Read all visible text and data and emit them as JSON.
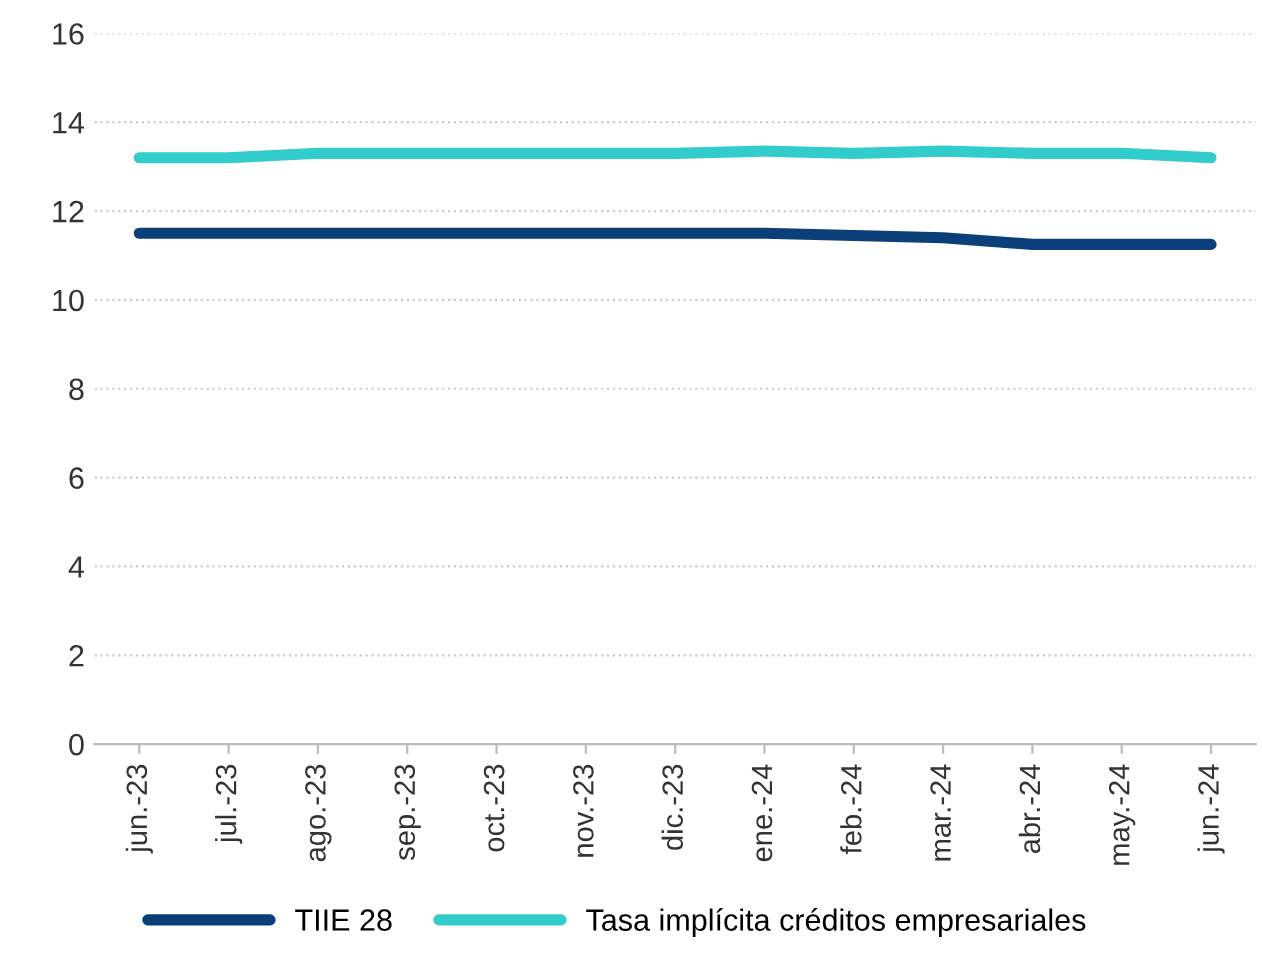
{
  "chart_data": {
    "type": "line",
    "categories": [
      "jun.-23",
      "jul.-23",
      "ago.-23",
      "sep.-23",
      "oct.-23",
      "nov.-23",
      "dic.-23",
      "ene.-24",
      "feb.-24",
      "mar.-24",
      "abr.-24",
      "may.-24",
      "jun.-24"
    ],
    "series": [
      {
        "name": "TIIE 28",
        "color": "#0b3f7a",
        "values": [
          11.5,
          11.5,
          11.5,
          11.5,
          11.5,
          11.5,
          11.5,
          11.5,
          11.45,
          11.4,
          11.25,
          11.25,
          11.25
        ]
      },
      {
        "name": "Tasa implícita créditos empresariales",
        "color": "#33cccc",
        "values": [
          13.2,
          13.2,
          13.3,
          13.3,
          13.3,
          13.3,
          13.3,
          13.35,
          13.3,
          13.35,
          13.3,
          13.3,
          13.2
        ]
      }
    ],
    "ylim": [
      0,
      16
    ],
    "yticks": [
      0,
      2,
      4,
      6,
      8,
      10,
      12,
      14,
      16
    ],
    "grid": "y",
    "legend": "bottom",
    "marker": "none",
    "line_style": "solid"
  }
}
